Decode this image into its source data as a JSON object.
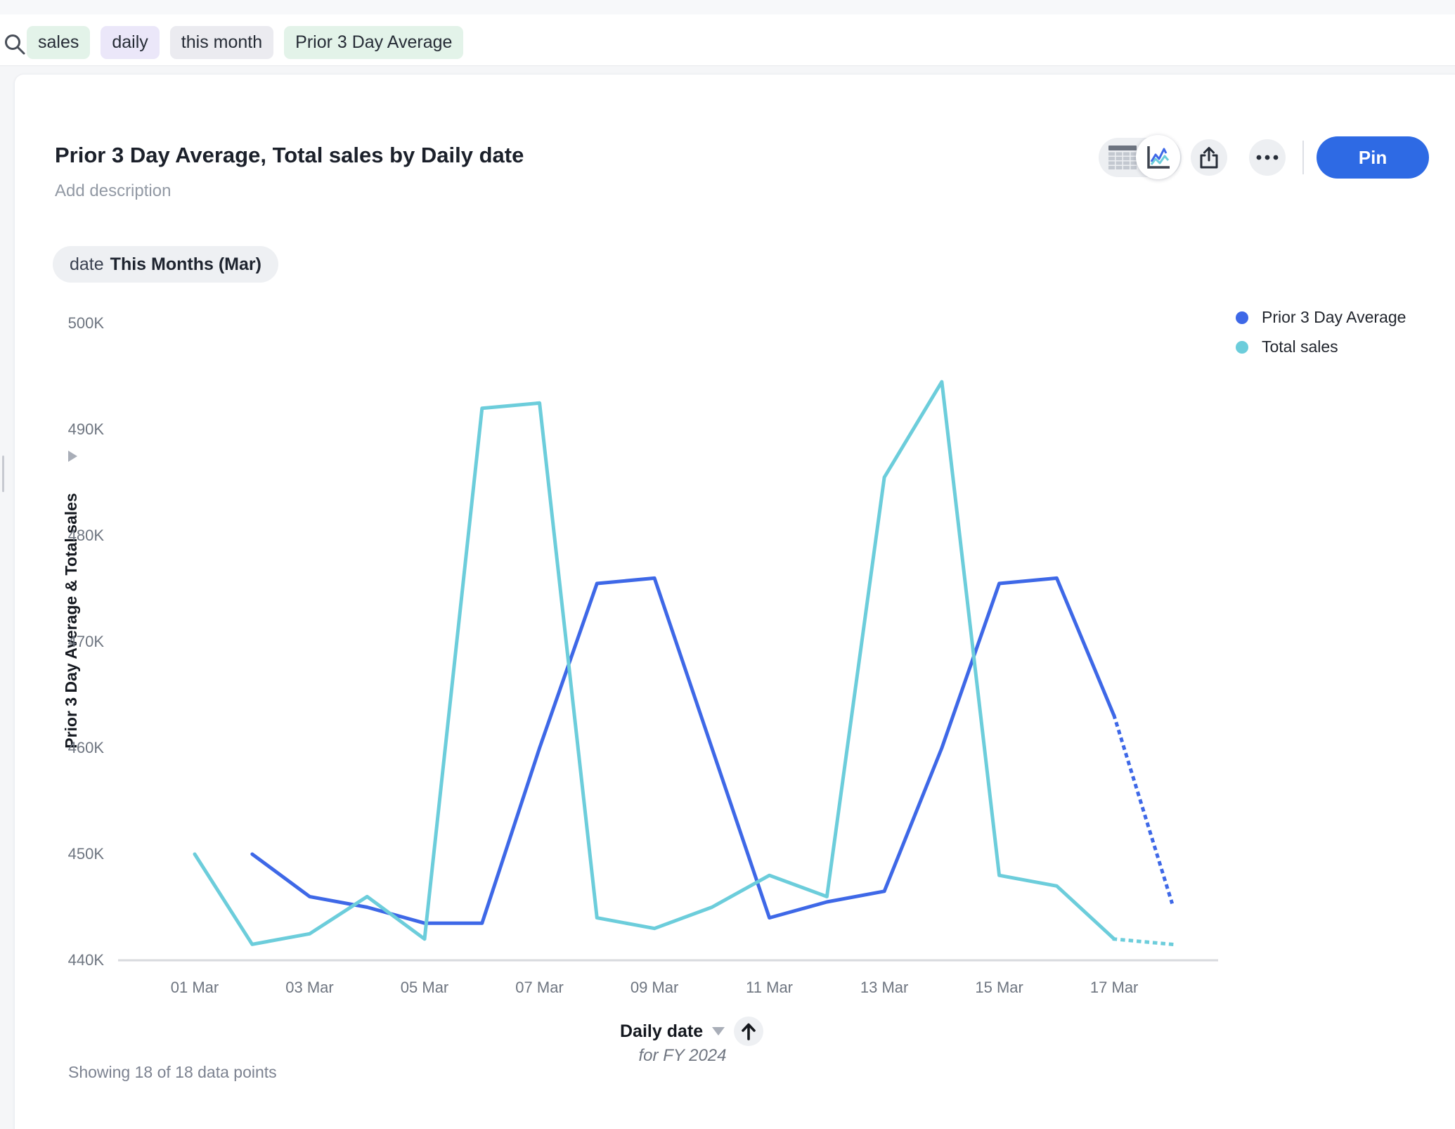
{
  "search": {
    "tokens": [
      {
        "label": "sales",
        "color": "green"
      },
      {
        "label": "daily",
        "color": "purple"
      },
      {
        "label": "this month",
        "color": "gray"
      },
      {
        "label": "Prior 3 Day Average",
        "color": "green"
      }
    ]
  },
  "header": {
    "title": "Prior 3 Day Average, Total sales by Daily date",
    "description_placeholder": "Add description",
    "pin_label": "Pin"
  },
  "filter_chip": {
    "prefix": "date",
    "value": "This Months (Mar)"
  },
  "footer": {
    "status": "Showing 18 of 18 data points"
  },
  "colors": {
    "series_blue": "#3E68E7",
    "series_teal": "#6CCDDB",
    "pin_button": "#2E6AE4",
    "axis_line": "#d8dade",
    "axis_text": "#6e7580"
  },
  "chart_data": {
    "type": "line",
    "title": "Prior 3 Day Average, Total sales by Daily date",
    "xlabel": "Daily date",
    "x_sublabel": "for FY 2024",
    "ylabel": "Prior 3 Day Average & Total sales",
    "ylim": [
      440000,
      500000
    ],
    "grid": false,
    "legend_position": "top-right",
    "y_ticks": [
      {
        "value": 440000,
        "label": "440K"
      },
      {
        "value": 450000,
        "label": "450K"
      },
      {
        "value": 460000,
        "label": "460K"
      },
      {
        "value": 470000,
        "label": "470K"
      },
      {
        "value": 480000,
        "label": "480K"
      },
      {
        "value": 490000,
        "label": "490K"
      },
      {
        "value": 500000,
        "label": "500K"
      }
    ],
    "x_ticks": [
      {
        "day": 1,
        "label": "01 Mar"
      },
      {
        "day": 3,
        "label": "03 Mar"
      },
      {
        "day": 5,
        "label": "05 Mar"
      },
      {
        "day": 7,
        "label": "07 Mar"
      },
      {
        "day": 9,
        "label": "09 Mar"
      },
      {
        "day": 11,
        "label": "11 Mar"
      },
      {
        "day": 13,
        "label": "13 Mar"
      },
      {
        "day": 15,
        "label": "15 Mar"
      },
      {
        "day": 17,
        "label": "17 Mar"
      }
    ],
    "series": [
      {
        "name": "Prior 3 Day Average",
        "color": "#3E68E7",
        "start_day": 2,
        "dotted_last_segment": true,
        "values": [
          450000,
          446000,
          445000,
          443500,
          443500,
          460000,
          475500,
          476000,
          460000,
          444000,
          445500,
          446500,
          460000,
          475500,
          476000,
          463000,
          445500
        ]
      },
      {
        "name": "Total sales",
        "color": "#6CCDDB",
        "start_day": 1,
        "dotted_last_segment": true,
        "values": [
          450000,
          441500,
          442500,
          446000,
          442000,
          492000,
          492500,
          444000,
          443000,
          445000,
          448000,
          446000,
          485500,
          494500,
          448000,
          447000,
          442000,
          441500
        ]
      }
    ]
  }
}
